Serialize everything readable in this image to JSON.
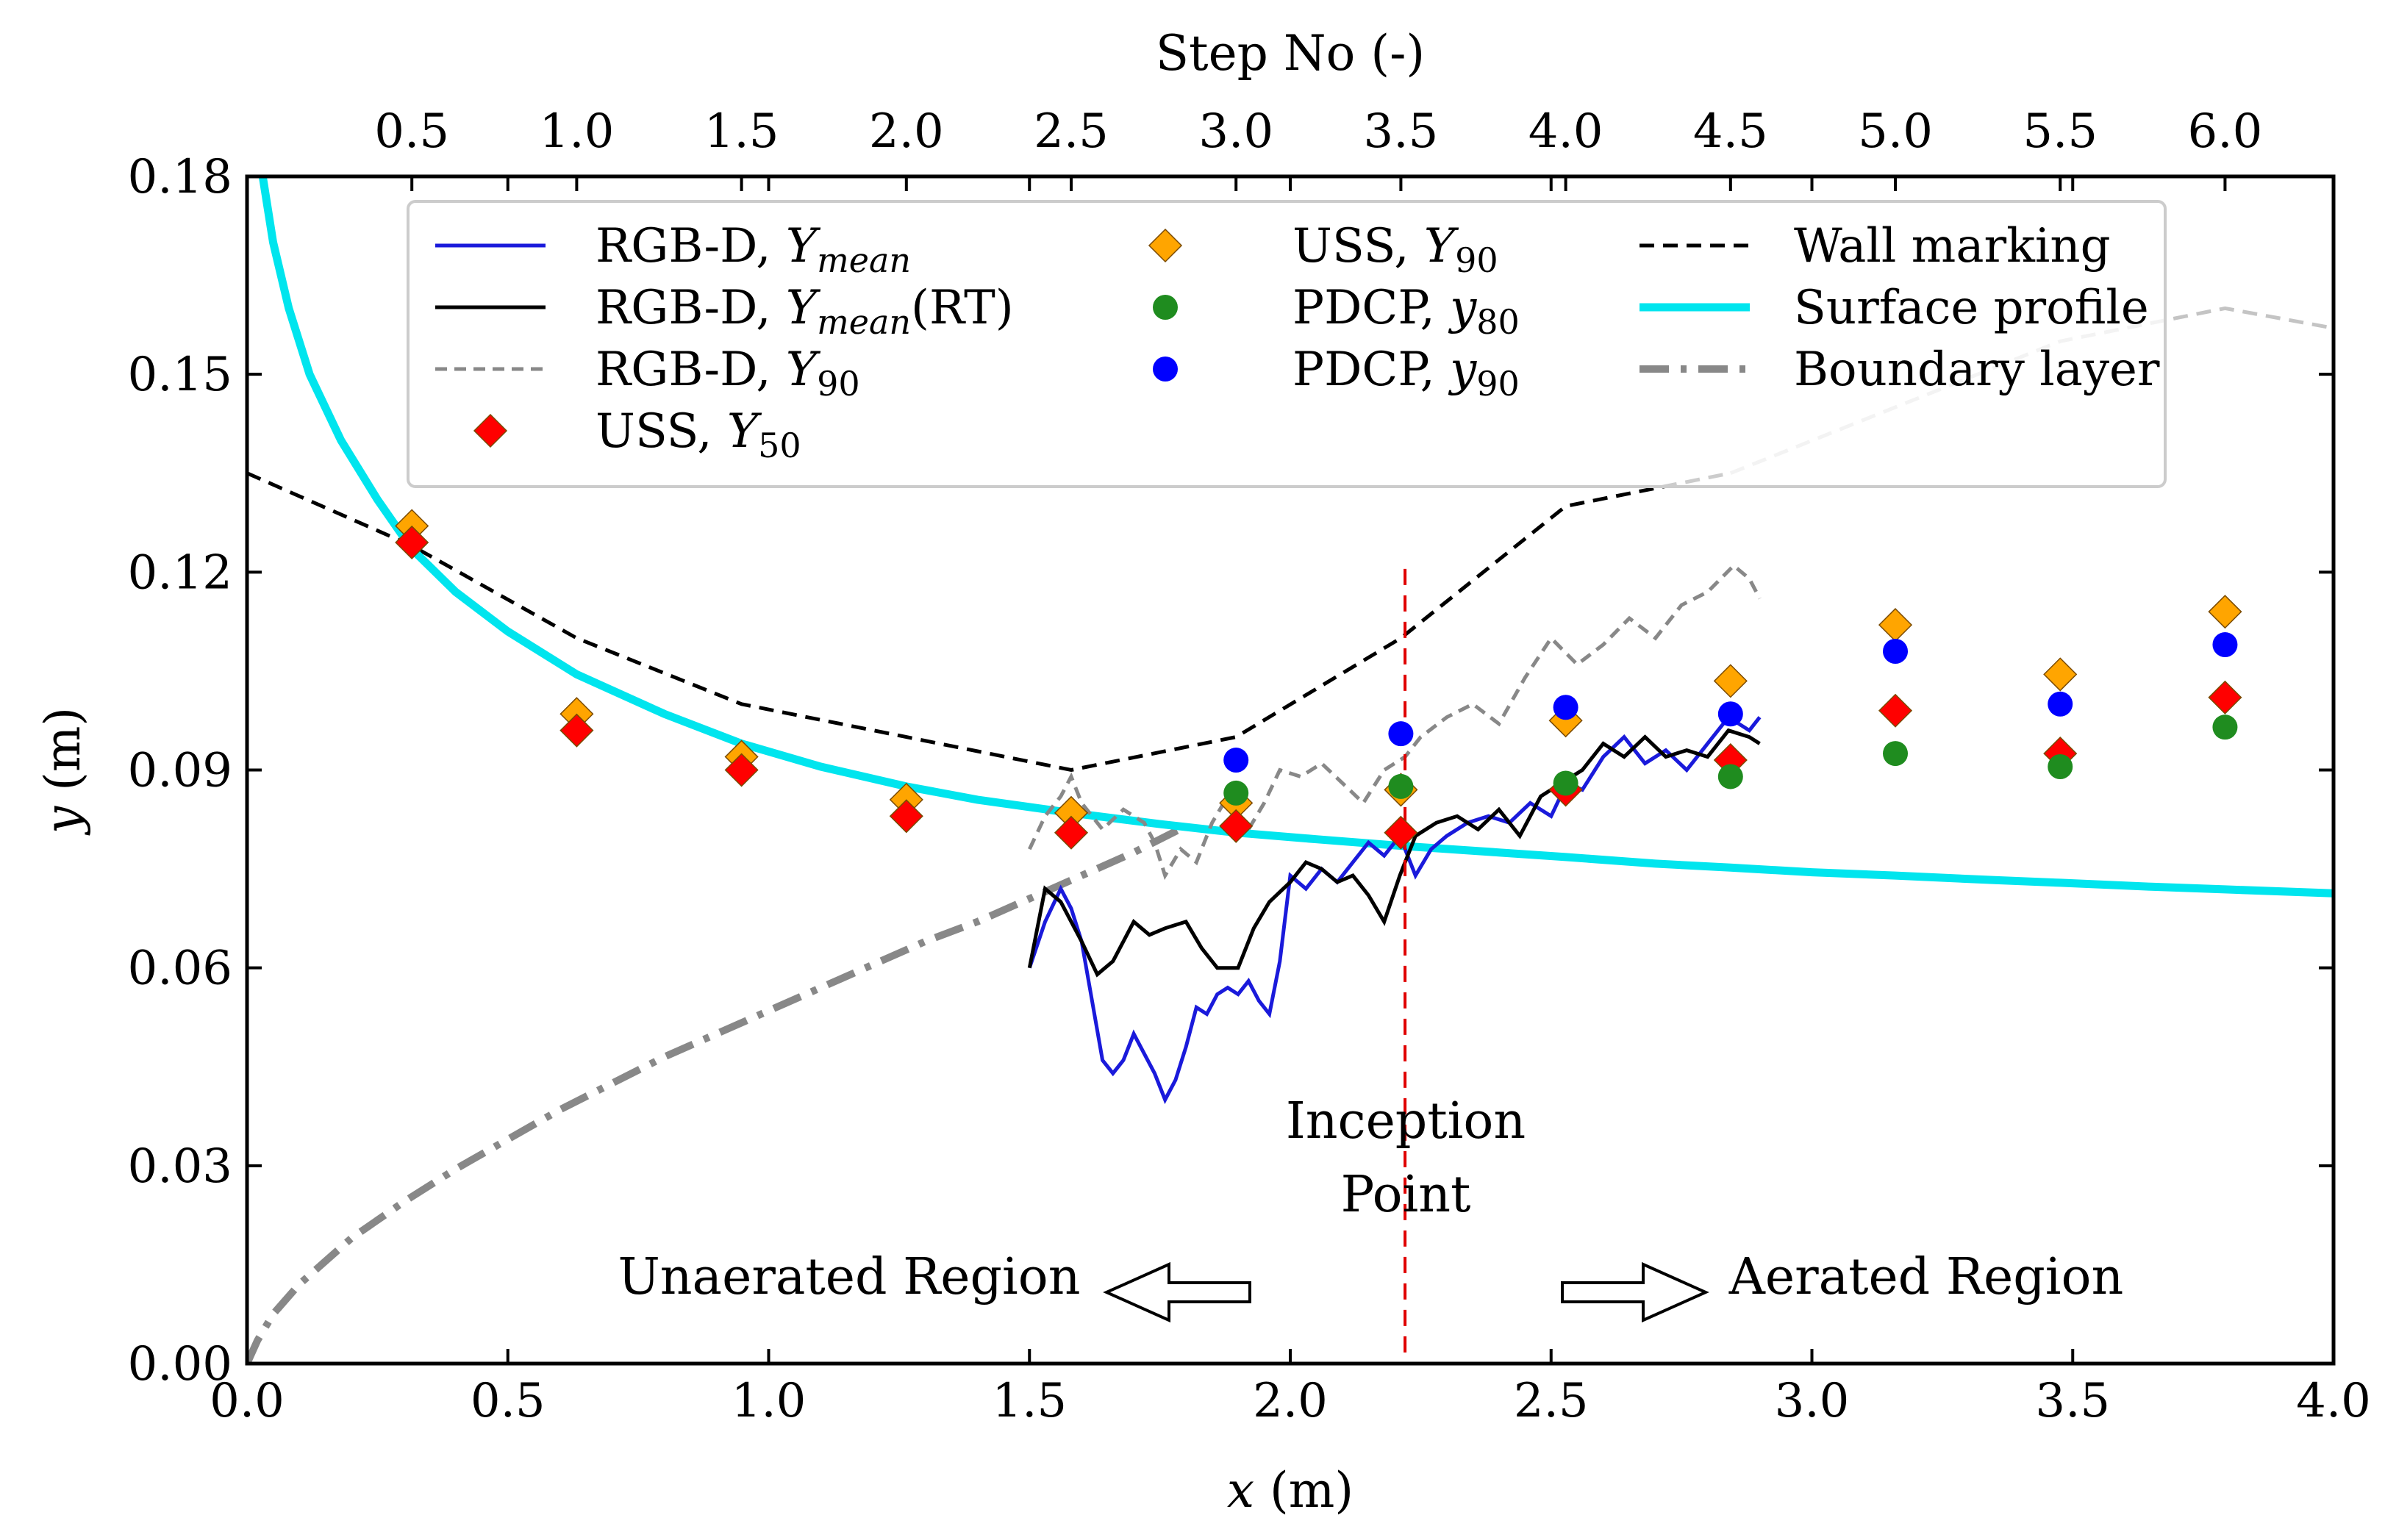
{
  "chart_data": {
    "type": "line",
    "title": "",
    "xlabel": "x (m)",
    "ylabel": "y (m)",
    "top_xlabel": "Step No (-)",
    "xlim": [
      0,
      4
    ],
    "ylim": [
      0,
      0.18
    ],
    "x_ticks": [
      "0.0",
      "0.5",
      "1.0",
      "1.5",
      "2.0",
      "2.5",
      "3.0",
      "3.5",
      "4.0"
    ],
    "y_ticks": [
      "0.00",
      "0.03",
      "0.06",
      "0.09",
      "0.12",
      "0.15",
      "0.18"
    ],
    "top_ticks": [
      {
        "step": 0.5,
        "label": "0.5"
      },
      {
        "step": 1.0,
        "label": "1.0"
      },
      {
        "step": 1.5,
        "label": "1.5"
      },
      {
        "step": 2.0,
        "label": "2.0"
      },
      {
        "step": 2.5,
        "label": "2.5"
      },
      {
        "step": 3.0,
        "label": "3.0"
      },
      {
        "step": 3.5,
        "label": "3.5"
      },
      {
        "step": 4.0,
        "label": "4.0"
      },
      {
        "step": 4.5,
        "label": "4.5"
      },
      {
        "step": 5.0,
        "label": "5.0"
      },
      {
        "step": 5.5,
        "label": "5.5"
      },
      {
        "step": 6.0,
        "label": "6.0"
      }
    ],
    "step_axis": {
      "x_at_step_0_5": 0.316,
      "x_per_step": 0.632
    },
    "grid": false,
    "legend_position": "top",
    "legend": [
      {
        "id": "rgbd-mean",
        "label": "RGB-D, ",
        "var": "Y",
        "sub": "mean",
        "suffix": ""
      },
      {
        "id": "rgbd-mean-rt",
        "label": "RGB-D, ",
        "var": "Y",
        "sub": "mean",
        "suffix": "(RT)"
      },
      {
        "id": "rgbd-y90",
        "label": "RGB-D, ",
        "var": "Y",
        "sub": "90",
        "suffix": ""
      },
      {
        "id": "uss-y50",
        "label": "USS, ",
        "var": "Y",
        "sub": "50",
        "suffix": ""
      },
      {
        "id": "uss-y90",
        "label": "USS, ",
        "var": "Y",
        "sub": "90",
        "suffix": ""
      },
      {
        "id": "pdcp-y80",
        "label": "PDCP, ",
        "var": "y",
        "sub": "80",
        "suffix": ""
      },
      {
        "id": "pdcp-y90",
        "label": "PDCP, ",
        "var": "y",
        "sub": "90",
        "suffix": ""
      },
      {
        "id": "wall",
        "label": "Wall marking",
        "var": "",
        "sub": "",
        "suffix": ""
      },
      {
        "id": "surface",
        "label": "Surface profile",
        "var": "",
        "sub": "",
        "suffix": ""
      },
      {
        "id": "bl",
        "label": "Boundary layer",
        "var": "",
        "sub": "",
        "suffix": ""
      }
    ],
    "annotations": {
      "inception_line1": "Inception",
      "inception_line2": "Point",
      "unaerated": "Unaerated Region",
      "aerated": "Aerated Region"
    },
    "inception_x": 2.22,
    "colors": {
      "rgbd_mean": "#1a1adb",
      "rgbd_mean_rt": "#000000",
      "rgbd_y90": "#888888",
      "uss_y50": "#ff0000",
      "uss_y90": "#ffa500",
      "pdcp_y80": "#1f8c1f",
      "pdcp_y90": "#0000ff",
      "wall": "#000000",
      "surface": "#00e5ee",
      "bl": "#888888",
      "inception": "#e00000"
    },
    "series": {
      "wall_marking": {
        "x": [
          0.0,
          0.316,
          0.632,
          0.948,
          1.264,
          1.58,
          1.896,
          2.212,
          2.528,
          2.844,
          3.16,
          3.476,
          3.792,
          4.0
        ],
        "y": [
          0.135,
          0.124,
          0.11,
          0.1,
          0.095,
          0.09,
          0.095,
          0.11,
          0.13,
          0.135,
          0.145,
          0.155,
          0.16,
          0.157
        ]
      },
      "surface_profile": {
        "x": [
          0.03,
          0.05,
          0.08,
          0.12,
          0.18,
          0.25,
          0.316,
          0.4,
          0.5,
          0.632,
          0.8,
          0.948,
          1.1,
          1.264,
          1.4,
          1.58,
          1.75,
          1.896,
          2.05,
          2.212,
          2.4,
          2.528,
          2.7,
          2.844,
          3.0,
          3.16,
          3.35,
          3.476,
          3.65,
          3.792,
          4.0
        ],
        "y": [
          0.18,
          0.17,
          0.16,
          0.15,
          0.14,
          0.131,
          0.1235,
          0.117,
          0.111,
          0.1045,
          0.0985,
          0.094,
          0.0905,
          0.0875,
          0.0855,
          0.0835,
          0.0818,
          0.0805,
          0.0795,
          0.0785,
          0.0775,
          0.0768,
          0.0758,
          0.0752,
          0.0745,
          0.074,
          0.0733,
          0.0729,
          0.0723,
          0.0719,
          0.0713
        ]
      },
      "boundary_layer": {
        "x": [
          0.0,
          0.02,
          0.05,
          0.1,
          0.15,
          0.2,
          0.3,
          0.4,
          0.5,
          0.6,
          0.7,
          0.8,
          0.9,
          1.0,
          1.1,
          1.2,
          1.3,
          1.4,
          1.5,
          1.6,
          1.7,
          1.8
        ],
        "y": [
          0.0,
          0.0035,
          0.0075,
          0.012,
          0.0155,
          0.019,
          0.0245,
          0.0295,
          0.034,
          0.0385,
          0.0425,
          0.0465,
          0.05,
          0.0535,
          0.057,
          0.0605,
          0.064,
          0.067,
          0.0705,
          0.074,
          0.0775,
          0.0815
        ]
      },
      "rgbd_y90": {
        "x": [
          1.5,
          1.53,
          1.56,
          1.58,
          1.6,
          1.64,
          1.68,
          1.72,
          1.74,
          1.76,
          1.79,
          1.82,
          1.85,
          1.88,
          1.92,
          1.95,
          1.98,
          2.02,
          2.06,
          2.1,
          2.14,
          2.18,
          2.22,
          2.25,
          2.3,
          2.35,
          2.4,
          2.45,
          2.5,
          2.55,
          2.6,
          2.65,
          2.7,
          2.75,
          2.8,
          2.85,
          2.88,
          2.9
        ],
        "y": [
          0.078,
          0.083,
          0.086,
          0.089,
          0.085,
          0.081,
          0.084,
          0.082,
          0.079,
          0.074,
          0.078,
          0.076,
          0.082,
          0.086,
          0.081,
          0.085,
          0.09,
          0.089,
          0.091,
          0.088,
          0.085,
          0.09,
          0.092,
          0.095,
          0.098,
          0.1,
          0.097,
          0.104,
          0.11,
          0.106,
          0.109,
          0.113,
          0.11,
          0.115,
          0.117,
          0.121,
          0.119,
          0.116
        ]
      },
      "rgbd_mean": {
        "x": [
          1.5,
          1.53,
          1.56,
          1.58,
          1.6,
          1.62,
          1.64,
          1.66,
          1.68,
          1.7,
          1.72,
          1.74,
          1.76,
          1.78,
          1.8,
          1.82,
          1.84,
          1.86,
          1.88,
          1.9,
          1.92,
          1.94,
          1.96,
          1.98,
          2.0,
          2.03,
          2.06,
          2.09,
          2.12,
          2.15,
          2.18,
          2.21,
          2.24,
          2.27,
          2.3,
          2.34,
          2.38,
          2.42,
          2.46,
          2.5,
          2.53,
          2.56,
          2.6,
          2.64,
          2.68,
          2.72,
          2.76,
          2.8,
          2.84,
          2.88,
          2.9
        ],
        "y": [
          0.06,
          0.067,
          0.072,
          0.069,
          0.064,
          0.055,
          0.046,
          0.044,
          0.046,
          0.05,
          0.047,
          0.044,
          0.04,
          0.043,
          0.048,
          0.054,
          0.053,
          0.056,
          0.057,
          0.056,
          0.058,
          0.055,
          0.053,
          0.061,
          0.074,
          0.072,
          0.075,
          0.073,
          0.076,
          0.079,
          0.077,
          0.08,
          0.074,
          0.078,
          0.08,
          0.082,
          0.083,
          0.082,
          0.085,
          0.083,
          0.088,
          0.087,
          0.092,
          0.095,
          0.091,
          0.093,
          0.09,
          0.094,
          0.098,
          0.096,
          0.098
        ]
      },
      "rgbd_mean_rt": {
        "x": [
          1.5,
          1.53,
          1.56,
          1.6,
          1.63,
          1.66,
          1.7,
          1.73,
          1.76,
          1.8,
          1.83,
          1.86,
          1.9,
          1.93,
          1.96,
          2.0,
          2.03,
          2.06,
          2.09,
          2.12,
          2.15,
          2.18,
          2.21,
          2.24,
          2.28,
          2.32,
          2.36,
          2.4,
          2.44,
          2.48,
          2.52,
          2.56,
          2.6,
          2.64,
          2.68,
          2.72,
          2.76,
          2.8,
          2.84,
          2.88,
          2.9
        ],
        "y": [
          0.06,
          0.072,
          0.07,
          0.064,
          0.059,
          0.061,
          0.067,
          0.065,
          0.066,
          0.067,
          0.063,
          0.06,
          0.06,
          0.066,
          0.07,
          0.073,
          0.076,
          0.075,
          0.073,
          0.074,
          0.071,
          0.067,
          0.074,
          0.08,
          0.082,
          0.083,
          0.081,
          0.084,
          0.08,
          0.086,
          0.088,
          0.09,
          0.094,
          0.092,
          0.095,
          0.092,
          0.093,
          0.092,
          0.096,
          0.095,
          0.094
        ]
      },
      "uss_y50": {
        "x": [
          0.316,
          0.632,
          0.948,
          1.264,
          1.58,
          1.896,
          2.212,
          2.528,
          2.844,
          3.16,
          3.476,
          3.792
        ],
        "y": [
          0.1245,
          0.096,
          0.09,
          0.083,
          0.0805,
          0.0815,
          0.0805,
          0.087,
          0.0915,
          0.099,
          0.0925,
          0.101
        ]
      },
      "uss_y90": {
        "x": [
          0.316,
          0.632,
          0.948,
          1.264,
          1.58,
          1.896,
          2.212,
          2.528,
          2.844,
          3.16,
          3.476,
          3.792
        ],
        "y": [
          0.127,
          0.0985,
          0.092,
          0.0855,
          0.0835,
          0.085,
          0.087,
          0.0975,
          0.1035,
          0.112,
          0.1045,
          0.114
        ]
      },
      "pdcp_y80": {
        "x": [
          1.896,
          2.212,
          2.528,
          2.844,
          3.16,
          3.476,
          3.792
        ],
        "y": [
          0.0865,
          0.0875,
          0.088,
          0.089,
          0.0925,
          0.0905,
          0.0965
        ]
      },
      "pdcp_y90": {
        "x": [
          1.896,
          2.212,
          2.528,
          2.844,
          3.16,
          3.476,
          3.792
        ],
        "y": [
          0.0915,
          0.0955,
          0.0995,
          0.0985,
          0.108,
          0.1,
          0.109
        ]
      }
    }
  }
}
